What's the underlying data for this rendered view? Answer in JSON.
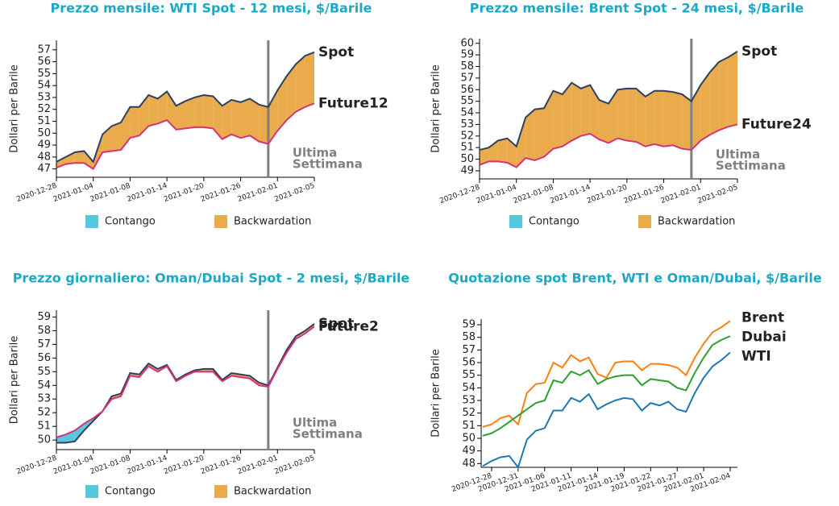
{
  "chart_data": [
    {
      "type": "spread",
      "title": "Prezzo mensile: WTI Spot - 12 mesi, $/Barile",
      "ylabel": "Dollari per Barile",
      "x": [
        "2020-12-28",
        "2020-12-29",
        "2020-12-30",
        "2020-12-31",
        "2021-01-04",
        "2021-01-05",
        "2021-01-06",
        "2021-01-07",
        "2021-01-08",
        "2021-01-11",
        "2021-01-12",
        "2021-01-13",
        "2021-01-14",
        "2021-01-15",
        "2021-01-18",
        "2021-01-19",
        "2021-01-20",
        "2021-01-21",
        "2021-01-22",
        "2021-01-25",
        "2021-01-26",
        "2021-01-27",
        "2021-01-28",
        "2021-01-29",
        "2021-02-01",
        "2021-02-02",
        "2021-02-03",
        "2021-02-04",
        "2021-02-05"
      ],
      "xticks": [
        "2020-12-28",
        "2021-01-04",
        "2021-01-08",
        "2021-01-14",
        "2021-01-20",
        "2021-01-26",
        "2021-02-01",
        "2021-02-05"
      ],
      "series": [
        {
          "name": "Spot",
          "color": "#2e3f5f",
          "values": [
            47.6,
            48.0,
            48.4,
            48.5,
            47.6,
            49.9,
            50.6,
            50.9,
            52.2,
            52.2,
            53.2,
            52.9,
            53.5,
            52.3,
            52.7,
            53.0,
            53.2,
            53.1,
            52.3,
            52.8,
            52.6,
            52.9,
            52.4,
            52.2,
            53.6,
            54.8,
            55.8,
            56.5,
            56.8
          ]
        },
        {
          "name": "Future12",
          "color": "#d63374",
          "values": [
            47.1,
            47.4,
            47.5,
            47.5,
            47.0,
            48.4,
            48.5,
            48.6,
            49.6,
            49.8,
            50.6,
            50.8,
            51.1,
            50.3,
            50.4,
            50.5,
            50.5,
            50.4,
            49.5,
            49.9,
            49.6,
            49.8,
            49.3,
            49.1,
            50.2,
            51.1,
            51.8,
            52.2,
            52.5
          ]
        }
      ],
      "ylim": [
        46.3,
        57.8
      ],
      "yticks": [
        47,
        48,
        49,
        50,
        51,
        52,
        53,
        54,
        55,
        56,
        57
      ],
      "annotation": [
        "Ultima",
        "Settimana"
      ],
      "legend": [
        {
          "name": "Contango",
          "color": "#56c7dc"
        },
        {
          "name": "Backwardation",
          "color": "#e9ab4b"
        }
      ]
    },
    {
      "type": "spread",
      "title": "Prezzo mensile: Brent Spot - 24 mesi, $/Barile",
      "ylabel": "Dollari per Barile",
      "x": [
        "2020-12-28",
        "2020-12-29",
        "2020-12-30",
        "2020-12-31",
        "2021-01-04",
        "2021-01-05",
        "2021-01-06",
        "2021-01-07",
        "2021-01-08",
        "2021-01-11",
        "2021-01-12",
        "2021-01-13",
        "2021-01-14",
        "2021-01-15",
        "2021-01-18",
        "2021-01-19",
        "2021-01-20",
        "2021-01-21",
        "2021-01-22",
        "2021-01-25",
        "2021-01-26",
        "2021-01-27",
        "2021-01-28",
        "2021-01-29",
        "2021-02-01",
        "2021-02-02",
        "2021-02-03",
        "2021-02-04",
        "2021-02-05"
      ],
      "xticks": [
        "2020-12-28",
        "2021-01-04",
        "2021-01-08",
        "2021-01-14",
        "2021-01-20",
        "2021-01-26",
        "2021-02-01",
        "2021-02-05"
      ],
      "series": [
        {
          "name": "Spot",
          "color": "#2e3f5f",
          "values": [
            50.8,
            51.0,
            51.6,
            51.8,
            51.1,
            53.6,
            54.3,
            54.4,
            55.9,
            55.6,
            56.6,
            56.1,
            56.4,
            55.1,
            54.8,
            56.0,
            56.1,
            56.1,
            55.4,
            55.9,
            55.9,
            55.8,
            55.6,
            55.0,
            56.4,
            57.5,
            58.4,
            58.8,
            59.3
          ]
        },
        {
          "name": "Future24",
          "color": "#d63374",
          "values": [
            49.5,
            49.8,
            49.8,
            49.7,
            49.3,
            50.1,
            49.9,
            50.2,
            50.9,
            51.1,
            51.6,
            52.0,
            52.2,
            51.7,
            51.4,
            51.8,
            51.6,
            51.5,
            51.1,
            51.3,
            51.1,
            51.2,
            50.9,
            50.8,
            51.6,
            52.1,
            52.5,
            52.8,
            53.0
          ]
        }
      ],
      "ylim": [
        48.3,
        60.4
      ],
      "yticks": [
        49,
        50,
        51,
        52,
        53,
        54,
        55,
        56,
        57,
        58,
        59,
        60
      ],
      "annotation": [
        "Ultima",
        "Settimana"
      ],
      "legend": [
        {
          "name": "Contango",
          "color": "#56c7dc"
        },
        {
          "name": "Backwardation",
          "color": "#e9ab4b"
        }
      ]
    },
    {
      "type": "spread",
      "title": "Prezzo giornaliero: Oman/Dubai Spot - 2 mesi, $/Barile",
      "ylabel": "Dollari per Barile",
      "x": [
        "2020-12-28",
        "2020-12-29",
        "2020-12-30",
        "2020-12-31",
        "2021-01-04",
        "2021-01-05",
        "2021-01-06",
        "2021-01-07",
        "2021-01-08",
        "2021-01-11",
        "2021-01-12",
        "2021-01-13",
        "2021-01-14",
        "2021-01-15",
        "2021-01-18",
        "2021-01-19",
        "2021-01-20",
        "2021-01-21",
        "2021-01-22",
        "2021-01-25",
        "2021-01-26",
        "2021-01-27",
        "2021-01-28",
        "2021-01-29",
        "2021-02-01",
        "2021-02-02",
        "2021-02-03",
        "2021-02-04",
        "2021-02-05"
      ],
      "xticks": [
        "2020-12-28",
        "2021-01-04",
        "2021-01-08",
        "2021-01-14",
        "2021-01-20",
        "2021-01-26",
        "2021-02-01",
        "2021-02-05"
      ],
      "series": [
        {
          "name": "Spot",
          "color": "#2e3f5f",
          "values": [
            49.8,
            49.8,
            49.9,
            50.7,
            51.4,
            52.1,
            53.2,
            53.4,
            54.9,
            54.8,
            55.6,
            55.2,
            55.5,
            54.4,
            54.8,
            55.1,
            55.2,
            55.2,
            54.4,
            54.9,
            54.8,
            54.7,
            54.2,
            54.0,
            55.3,
            56.6,
            57.6,
            58.0,
            58.5
          ]
        },
        {
          "name": "Future2",
          "color": "#d63374",
          "values": [
            50.2,
            50.4,
            50.7,
            51.2,
            51.6,
            52.1,
            53.0,
            53.2,
            54.7,
            54.6,
            55.4,
            55.0,
            55.4,
            54.3,
            54.7,
            55.0,
            55.0,
            55.0,
            54.3,
            54.7,
            54.6,
            54.5,
            54.0,
            53.9,
            55.2,
            56.4,
            57.4,
            57.8,
            58.3
          ]
        }
      ],
      "ylim": [
        49.3,
        59.5
      ],
      "yticks": [
        50,
        51,
        52,
        53,
        54,
        55,
        56,
        57,
        58,
        59
      ],
      "annotation": [
        "Ultima",
        "Settimana"
      ],
      "legend": [
        {
          "name": "Contango",
          "color": "#56c7dc"
        },
        {
          "name": "Backwardation",
          "color": "#e9ab4b"
        }
      ]
    },
    {
      "type": "line",
      "title": "Quotazione spot Brent, WTI e Oman/Dubai, $/Barile",
      "ylabel": "Dollari per Barile",
      "x": [
        "2020-12-24",
        "2020-12-28",
        "2020-12-29",
        "2020-12-30",
        "2020-12-31",
        "2021-01-04",
        "2021-01-05",
        "2021-01-06",
        "2021-01-07",
        "2021-01-08",
        "2021-01-11",
        "2021-01-12",
        "2021-01-13",
        "2021-01-14",
        "2021-01-15",
        "2021-01-18",
        "2021-01-19",
        "2021-01-20",
        "2021-01-21",
        "2021-01-22",
        "2021-01-25",
        "2021-01-26",
        "2021-01-27",
        "2021-01-28",
        "2021-01-29",
        "2021-02-01",
        "2021-02-02",
        "2021-02-03",
        "2021-02-04"
      ],
      "xticks": [
        "2020-12-28",
        "2020-12-31",
        "2021-01-06",
        "2021-01-11",
        "2021-01-14",
        "2021-01-19",
        "2021-01-22",
        "2021-01-27",
        "2021-02-01",
        "2021-02-04"
      ],
      "series": [
        {
          "name": "Brent",
          "color": "#ff7f0e",
          "values": [
            50.9,
            51.1,
            51.6,
            51.8,
            51.1,
            53.6,
            54.3,
            54.4,
            56.0,
            55.6,
            56.6,
            56.1,
            56.4,
            55.1,
            54.8,
            56.0,
            56.1,
            56.1,
            55.4,
            55.9,
            55.9,
            55.8,
            55.6,
            55.0,
            56.4,
            57.5,
            58.4,
            58.8,
            59.3
          ]
        },
        {
          "name": "Dubai",
          "color": "#2ca02c",
          "values": [
            50.2,
            50.4,
            50.8,
            51.3,
            51.8,
            52.3,
            52.8,
            53.0,
            54.6,
            54.4,
            55.3,
            55.0,
            55.4,
            54.3,
            54.7,
            54.9,
            55.0,
            55.0,
            54.2,
            54.7,
            54.6,
            54.5,
            54.0,
            53.8,
            55.2,
            56.4,
            57.4,
            57.8,
            58.1
          ]
        },
        {
          "name": "WTI",
          "color": "#1f77b4",
          "values": [
            47.8,
            48.2,
            48.5,
            48.6,
            47.7,
            49.9,
            50.6,
            50.8,
            52.2,
            52.2,
            53.2,
            52.9,
            53.5,
            52.3,
            52.7,
            53.0,
            53.2,
            53.1,
            52.2,
            52.8,
            52.6,
            52.9,
            52.3,
            52.1,
            53.6,
            54.8,
            55.7,
            56.2,
            56.8
          ]
        }
      ],
      "ylim": [
        47.7,
        59.45
      ],
      "yticks": [
        48,
        49,
        50,
        51,
        52,
        53,
        54,
        55,
        56,
        57,
        58,
        59
      ]
    }
  ]
}
